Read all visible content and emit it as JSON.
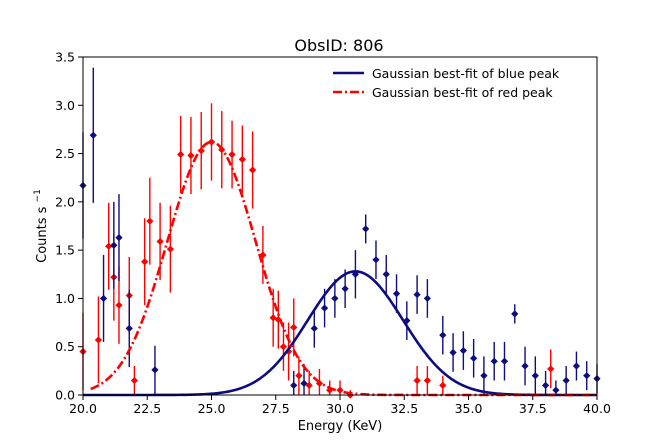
{
  "chart_data": {
    "type": "scatter",
    "title": "ObsID: 806",
    "xlabel": "Energy (KeV)",
    "ylabel_main": "Counts s",
    "ylabel_sup": "−1",
    "xlim": [
      20.0,
      40.0
    ],
    "ylim": [
      0.0,
      3.5
    ],
    "xticks": [
      20.0,
      22.5,
      25.0,
      27.5,
      30.0,
      32.5,
      35.0,
      37.5,
      40.0
    ],
    "xtick_labels": [
      "20.0",
      "22.5",
      "25.0",
      "27.5",
      "30.0",
      "32.5",
      "35.0",
      "37.5",
      "40.0"
    ],
    "yticks": [
      0.0,
      0.5,
      1.0,
      1.5,
      2.0,
      2.5,
      3.0,
      3.5
    ],
    "ytick_labels": [
      "0.0",
      "0.5",
      "1.0",
      "1.5",
      "2.0",
      "2.5",
      "3.0",
      "3.5"
    ],
    "legend_position": "top-right",
    "colors": {
      "blue": "#0d0d80",
      "red": "#ff0000"
    },
    "fits": [
      {
        "name": "Gaussian best-fit of blue peak",
        "color": "#0d0d80",
        "style": "solid",
        "amplitude": 1.28,
        "mean": 30.6,
        "sigma": 1.85
      },
      {
        "name": "Gaussian best-fit of red peak",
        "color": "#ff0000",
        "style": "dashdot",
        "amplitude": 2.62,
        "mean": 25.0,
        "sigma": 1.72
      }
    ],
    "series": [
      {
        "name": "red data",
        "color": "#ff0000",
        "x": [
          20.0,
          20.6,
          21.0,
          21.2,
          21.4,
          21.8,
          22.0,
          22.4,
          22.6,
          23.0,
          23.4,
          23.8,
          24.2,
          24.6,
          25.0,
          25.4,
          25.8,
          26.2,
          26.6,
          27.0,
          27.4,
          27.6,
          27.8,
          28.0,
          28.2,
          28.4,
          28.8,
          29.2,
          29.6,
          30.0,
          30.4,
          33.0,
          33.4,
          34.0,
          38.2
        ],
        "y": [
          0.45,
          0.57,
          1.54,
          1.22,
          0.93,
          1.03,
          0.15,
          1.38,
          1.8,
          1.59,
          1.51,
          2.49,
          2.48,
          2.53,
          2.62,
          2.54,
          2.49,
          2.44,
          2.33,
          1.45,
          0.8,
          0.78,
          0.5,
          0.45,
          0.7,
          0.2,
          0.1,
          0.12,
          0.05,
          0.05,
          0.0,
          0.15,
          0.15,
          0.1,
          0.27
        ],
        "yerr": [
          0.4,
          0.45,
          0.45,
          0.45,
          0.4,
          0.4,
          0.15,
          0.45,
          0.45,
          0.4,
          0.45,
          0.4,
          0.4,
          0.4,
          0.4,
          0.4,
          0.35,
          0.35,
          0.4,
          0.3,
          0.3,
          0.3,
          0.25,
          0.3,
          0.3,
          0.2,
          0.15,
          0.15,
          0.1,
          0.1,
          0.05,
          0.15,
          0.15,
          0.1,
          0.2
        ]
      },
      {
        "name": "blue data",
        "color": "#0d0d80",
        "x": [
          20.0,
          20.4,
          20.8,
          21.2,
          21.4,
          21.8,
          22.8,
          28.2,
          28.6,
          29.0,
          29.4,
          29.8,
          30.2,
          30.6,
          31.0,
          31.4,
          31.8,
          32.2,
          32.6,
          33.0,
          33.4,
          34.0,
          34.4,
          34.8,
          35.2,
          35.6,
          36.0,
          36.4,
          36.8,
          37.2,
          37.6,
          38.0,
          38.4,
          38.8,
          39.2,
          39.6,
          40.0
        ],
        "y": [
          2.17,
          2.69,
          1.0,
          1.55,
          1.63,
          0.69,
          0.26,
          0.1,
          0.12,
          0.69,
          0.9,
          1.0,
          1.1,
          1.25,
          1.72,
          1.4,
          1.25,
          1.05,
          0.77,
          1.04,
          1.0,
          0.62,
          0.44,
          0.46,
          0.38,
          0.2,
          0.35,
          0.35,
          0.84,
          0.3,
          0.2,
          0.1,
          0.05,
          0.15,
          0.3,
          0.2,
          0.17
        ],
        "yerr": [
          0.55,
          0.7,
          0.45,
          0.45,
          0.45,
          0.4,
          0.25,
          0.15,
          0.2,
          0.2,
          0.2,
          0.2,
          0.2,
          0.25,
          0.15,
          0.2,
          0.2,
          0.2,
          0.2,
          0.2,
          0.2,
          0.2,
          0.2,
          0.2,
          0.2,
          0.2,
          0.2,
          0.2,
          0.1,
          0.2,
          0.2,
          0.15,
          0.1,
          0.15,
          0.15,
          0.15,
          0.15
        ]
      }
    ]
  }
}
